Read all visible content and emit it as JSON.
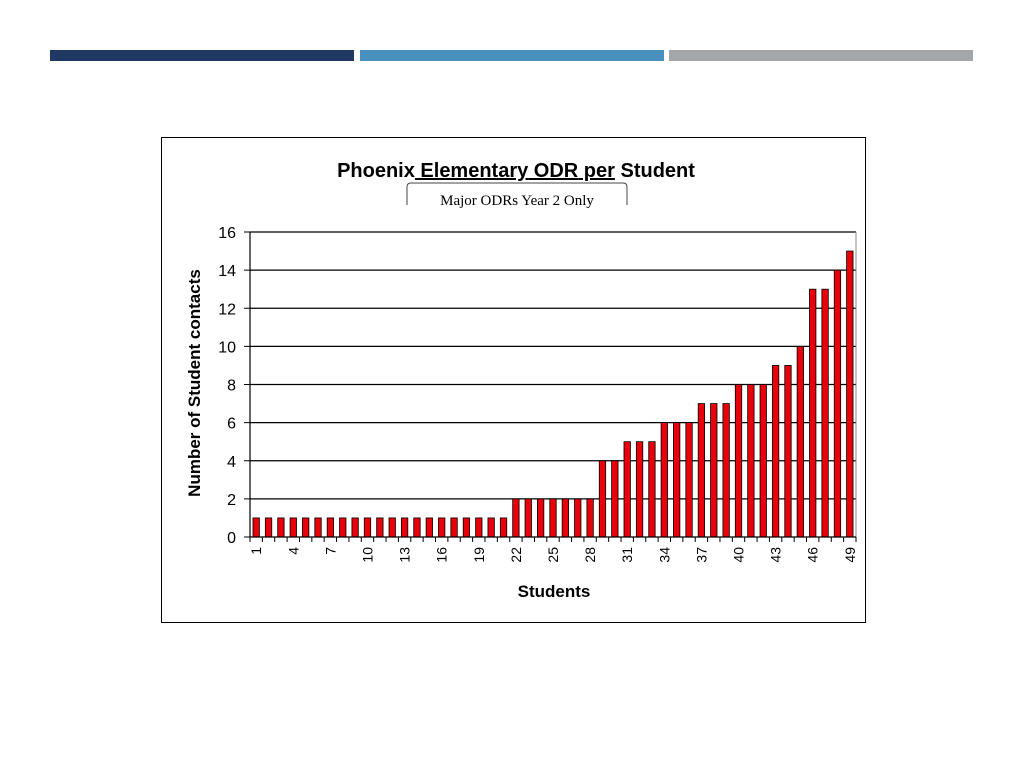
{
  "decor": {
    "bar_colors": [
      "#1f3864",
      "#4a90bd",
      "#a3a6a9"
    ]
  },
  "chart_data": {
    "type": "bar",
    "title_words": [
      "Phoenix",
      "Elementary",
      "ODR",
      "per",
      "Student"
    ],
    "underlined_words": [
      "Elementary",
      "ODR",
      "per"
    ],
    "subtitle": "Major ODRs Year 2 Only",
    "xlabel": "Students",
    "ylabel": "Number of Student contacts",
    "ylim": [
      0,
      16
    ],
    "yticks": [
      0,
      2,
      4,
      6,
      8,
      10,
      12,
      14,
      16
    ],
    "grid": true,
    "bar_color": "#e8000b",
    "x_tick_labels": [
      "1",
      "4",
      "7",
      "10",
      "13",
      "16",
      "19",
      "22",
      "25",
      "28",
      "31",
      "34",
      "37",
      "40",
      "43",
      "46",
      "49"
    ],
    "categories": [
      1,
      2,
      3,
      4,
      5,
      6,
      7,
      8,
      9,
      10,
      11,
      12,
      13,
      14,
      15,
      16,
      17,
      18,
      19,
      20,
      21,
      22,
      23,
      24,
      25,
      26,
      27,
      28,
      29,
      30,
      31,
      32,
      33,
      34,
      35,
      36,
      37,
      38,
      39,
      40,
      41,
      42,
      43,
      44,
      45,
      46,
      47,
      48,
      49
    ],
    "values": [
      1,
      1,
      1,
      1,
      1,
      1,
      1,
      1,
      1,
      1,
      1,
      1,
      1,
      1,
      1,
      1,
      1,
      1,
      1,
      1,
      1,
      2,
      2,
      2,
      2,
      2,
      2,
      2,
      4,
      4,
      5,
      5,
      5,
      6,
      6,
      6,
      7,
      7,
      7,
      8,
      8,
      8,
      9,
      9,
      10,
      13,
      13,
      14,
      15
    ]
  }
}
